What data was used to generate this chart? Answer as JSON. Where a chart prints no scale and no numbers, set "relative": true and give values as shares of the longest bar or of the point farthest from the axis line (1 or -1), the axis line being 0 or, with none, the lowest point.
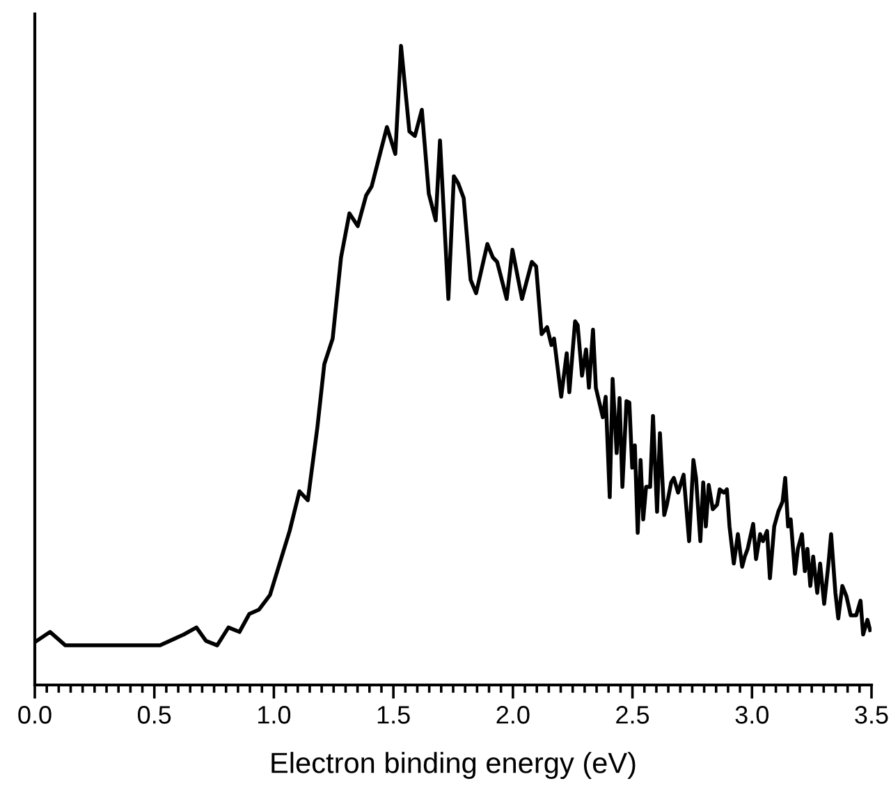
{
  "chart_data": {
    "type": "line",
    "xlabel": "Electron binding energy (eV)",
    "relative": true,
    "xlim": [
      0,
      3.5
    ],
    "xticks": [
      {
        "value": 0,
        "label": "0.0"
      },
      {
        "value": 0.05,
        "label": null
      },
      {
        "value": 0.1,
        "label": null
      },
      {
        "value": 0.15,
        "label": null
      },
      {
        "value": 0.2,
        "label": null
      },
      {
        "value": 0.25,
        "label": null
      },
      {
        "value": 0.3,
        "label": null
      },
      {
        "value": 0.35,
        "label": null
      },
      {
        "value": 0.4,
        "label": null
      },
      {
        "value": 0.45,
        "label": null
      },
      {
        "value": 0.5,
        "label": "0.5"
      },
      {
        "value": 0.55,
        "label": null
      },
      {
        "value": 0.6,
        "label": null
      },
      {
        "value": 0.65,
        "label": null
      },
      {
        "value": 0.7,
        "label": null
      },
      {
        "value": 0.75,
        "label": null
      },
      {
        "value": 0.8,
        "label": null
      },
      {
        "value": 0.85,
        "label": null
      },
      {
        "value": 0.9,
        "label": null
      },
      {
        "value": 0.95,
        "label": null
      },
      {
        "value": 1.0,
        "label": "1.0"
      },
      {
        "value": 1.05,
        "label": null
      },
      {
        "value": 1.1,
        "label": null
      },
      {
        "value": 1.15,
        "label": null
      },
      {
        "value": 1.2,
        "label": null
      },
      {
        "value": 1.25,
        "label": null
      },
      {
        "value": 1.3,
        "label": null
      },
      {
        "value": 1.35,
        "label": null
      },
      {
        "value": 1.4,
        "label": null
      },
      {
        "value": 1.45,
        "label": null
      },
      {
        "value": 1.5,
        "label": "1.5"
      },
      {
        "value": 1.55,
        "label": null
      },
      {
        "value": 1.6,
        "label": null
      },
      {
        "value": 1.65,
        "label": null
      },
      {
        "value": 1.7,
        "label": null
      },
      {
        "value": 1.75,
        "label": null
      },
      {
        "value": 1.8,
        "label": null
      },
      {
        "value": 1.85,
        "label": null
      },
      {
        "value": 1.9,
        "label": null
      },
      {
        "value": 1.95,
        "label": null
      },
      {
        "value": 2.0,
        "label": "2.0"
      },
      {
        "value": 2.05,
        "label": null
      },
      {
        "value": 2.1,
        "label": null
      },
      {
        "value": 2.15,
        "label": null
      },
      {
        "value": 2.2,
        "label": null
      },
      {
        "value": 2.25,
        "label": null
      },
      {
        "value": 2.3,
        "label": null
      },
      {
        "value": 2.35,
        "label": null
      },
      {
        "value": 2.4,
        "label": null
      },
      {
        "value": 2.45,
        "label": null
      },
      {
        "value": 2.5,
        "label": "2.5"
      },
      {
        "value": 2.55,
        "label": null
      },
      {
        "value": 2.6,
        "label": null
      },
      {
        "value": 2.65,
        "label": null
      },
      {
        "value": 2.7,
        "label": null
      },
      {
        "value": 2.75,
        "label": null
      },
      {
        "value": 2.8,
        "label": null
      },
      {
        "value": 2.85,
        "label": null
      },
      {
        "value": 2.9,
        "label": null
      },
      {
        "value": 2.95,
        "label": null
      },
      {
        "value": 3.0,
        "label": "3.0"
      },
      {
        "value": 3.05,
        "label": null
      },
      {
        "value": 3.1,
        "label": null
      },
      {
        "value": 3.15,
        "label": null
      },
      {
        "value": 3.2,
        "label": null
      },
      {
        "value": 3.25,
        "label": null
      },
      {
        "value": 3.3,
        "label": null
      },
      {
        "value": 3.35,
        "label": null
      },
      {
        "value": 3.4,
        "label": null
      },
      {
        "value": 3.45,
        "label": null
      },
      {
        "value": 3.5,
        "label": "3.5"
      }
    ],
    "marker": "none",
    "line_style": "solid",
    "series": [
      {
        "color": "#000000",
        "x": [
          0.0,
          0.064,
          0.128,
          0.524,
          0.623,
          0.676,
          0.716,
          0.763,
          0.81,
          0.856,
          0.897,
          0.938,
          0.984,
          1.066,
          1.107,
          1.142,
          1.182,
          1.211,
          1.246,
          1.281,
          1.316,
          1.351,
          1.386,
          1.409,
          1.444,
          1.473,
          1.508,
          1.532,
          1.567,
          1.59,
          1.619,
          1.648,
          1.677,
          1.695,
          1.73,
          1.753,
          1.771,
          1.794,
          1.823,
          1.846,
          1.893,
          1.916,
          1.934,
          1.974,
          1.998,
          2.038,
          2.079,
          2.097,
          2.12,
          2.143,
          2.161,
          2.172,
          2.202,
          2.225,
          2.236,
          2.26,
          2.271,
          2.289,
          2.306,
          2.318,
          2.335,
          2.347,
          2.376,
          2.388,
          2.405,
          2.417,
          2.434,
          2.446,
          2.458,
          2.475,
          2.487,
          2.499,
          2.51,
          2.522,
          2.534,
          2.545,
          2.557,
          2.574,
          2.586,
          2.603,
          2.615,
          2.633,
          2.644,
          2.662,
          2.673,
          2.691,
          2.714,
          2.737,
          2.755,
          2.766,
          2.784,
          2.796,
          2.807,
          2.819,
          2.836,
          2.854,
          2.865,
          2.883,
          2.895,
          2.906,
          2.924,
          2.941,
          2.959,
          2.97,
          2.982,
          3.005,
          3.017,
          3.034,
          3.046,
          3.063,
          3.075,
          3.093,
          3.11,
          3.128,
          3.139,
          3.151,
          3.162,
          3.18,
          3.192,
          3.209,
          3.221,
          3.232,
          3.244,
          3.256,
          3.273,
          3.285,
          3.302,
          3.32,
          3.331,
          3.349,
          3.361,
          3.378,
          3.395,
          3.413,
          3.436,
          3.454,
          3.465,
          3.483,
          3.494
        ],
        "values": [
          0.067,
          0.083,
          0.062,
          0.062,
          0.079,
          0.09,
          0.069,
          0.062,
          0.09,
          0.083,
          0.111,
          0.118,
          0.141,
          0.241,
          0.303,
          0.289,
          0.403,
          0.502,
          0.542,
          0.669,
          0.738,
          0.718,
          0.766,
          0.78,
          0.831,
          0.873,
          0.831,
          1.0,
          0.866,
          0.859,
          0.9,
          0.769,
          0.727,
          0.852,
          0.604,
          0.796,
          0.785,
          0.762,
          0.634,
          0.613,
          0.69,
          0.669,
          0.662,
          0.604,
          0.681,
          0.604,
          0.662,
          0.655,
          0.549,
          0.56,
          0.532,
          0.542,
          0.451,
          0.519,
          0.458,
          0.569,
          0.563,
          0.484,
          0.525,
          0.465,
          0.556,
          0.465,
          0.419,
          0.451,
          0.294,
          0.479,
          0.363,
          0.449,
          0.31,
          0.444,
          0.442,
          0.34,
          0.375,
          0.238,
          0.352,
          0.259,
          0.31,
          0.31,
          0.421,
          0.271,
          0.394,
          0.266,
          0.282,
          0.317,
          0.324,
          0.301,
          0.329,
          0.225,
          0.352,
          0.324,
          0.225,
          0.317,
          0.248,
          0.313,
          0.275,
          0.282,
          0.306,
          0.301,
          0.306,
          0.248,
          0.19,
          0.236,
          0.185,
          0.201,
          0.213,
          0.252,
          0.197,
          0.236,
          0.225,
          0.241,
          0.167,
          0.248,
          0.271,
          0.287,
          0.324,
          0.248,
          0.259,
          0.174,
          0.213,
          0.236,
          0.178,
          0.213,
          0.155,
          0.201,
          0.144,
          0.19,
          0.127,
          0.19,
          0.236,
          0.144,
          0.104,
          0.155,
          0.139,
          0.109,
          0.109,
          0.132,
          0.079,
          0.102,
          0.086
        ]
      }
    ]
  }
}
